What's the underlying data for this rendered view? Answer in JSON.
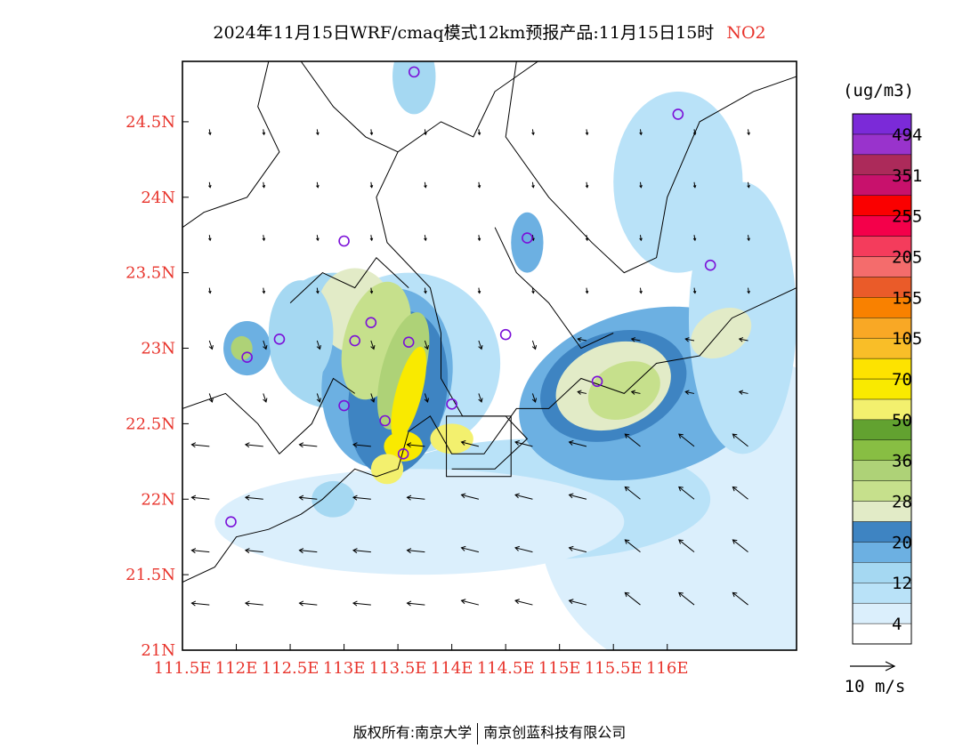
{
  "title": {
    "text": "2024年11月15日WRF/cmaq模式12km预报产品:11月15日15时",
    "pollutant": "NO2"
  },
  "map": {
    "lon_range": [
      111.5,
      117.2
    ],
    "lat_range": [
      21.0,
      24.9
    ],
    "x_ticks": [
      "111.5E",
      "112E",
      "112.5E",
      "113E",
      "113.5E",
      "114E",
      "114.5E",
      "115E",
      "115.5E",
      "116E"
    ],
    "y_ticks": [
      "21N",
      "21.5N",
      "22N",
      "22.5N",
      "23N",
      "23.5N",
      "24N",
      "24.5N"
    ],
    "tick_color": "#e8342c",
    "stations": [
      [
        113.65,
        24.83
      ],
      [
        116.1,
        24.55
      ],
      [
        114.7,
        23.73
      ],
      [
        113.0,
        23.71
      ],
      [
        116.4,
        23.55
      ],
      [
        113.25,
        23.17
      ],
      [
        112.4,
        23.06
      ],
      [
        113.1,
        23.05
      ],
      [
        113.6,
        23.04
      ],
      [
        114.5,
        23.09
      ],
      [
        112.1,
        22.94
      ],
      [
        115.35,
        22.78
      ],
      [
        113.0,
        22.62
      ],
      [
        114.0,
        22.63
      ],
      [
        113.38,
        22.52
      ],
      [
        113.55,
        22.3
      ],
      [
        111.95,
        21.85
      ]
    ]
  },
  "colorbar": {
    "unit": "(ug/m3)",
    "colors": [
      "#ffffff",
      "#dbeffc",
      "#b9e2f8",
      "#a5d8f2",
      "#6cb0e2",
      "#3e84c2",
      "#e2ebc7",
      "#c6e08c",
      "#aed277",
      "#88be43",
      "#62a230",
      "#f3f06e",
      "#f9ea00",
      "#fde300",
      "#f9be28",
      "#f9a825",
      "#f98100",
      "#ea5b29",
      "#f46c6c",
      "#f43c5c",
      "#f4004a",
      "#fa0000",
      "#c8116c",
      "#ac2a5a",
      "#9933cc",
      "#7b2ad8"
    ],
    "labels": [
      "4",
      "12",
      "20",
      "28",
      "36",
      "50",
      "70",
      "105",
      "155",
      "205",
      "255",
      "351",
      "494"
    ]
  },
  "wind_scale": {
    "label": "10 m/s"
  },
  "footer": {
    "left": "版权所有:南京大学",
    "right": "南京创蓝科技有限公司"
  }
}
